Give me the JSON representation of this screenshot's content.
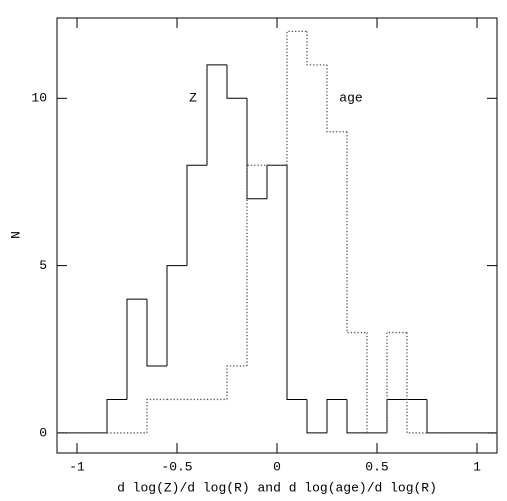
{
  "chart_data": {
    "type": "histogram",
    "x_label": "d log(Z)/d log(R) and d log(age)/d log(R)",
    "y_label": "N",
    "bins": [
      -0.85,
      -0.75,
      -0.65,
      -0.55,
      -0.45,
      -0.35,
      -0.25,
      -0.15,
      -0.05,
      0.05,
      0.15,
      0.25,
      0.35,
      0.45,
      0.55,
      0.65,
      0.75
    ],
    "series": [
      {
        "name": "Z",
        "color": "#000000",
        "line_style": "solid",
        "values": [
          1,
          4,
          2,
          5,
          8,
          11,
          10,
          7,
          8,
          1,
          0,
          1,
          0,
          0,
          1,
          1
        ]
      },
      {
        "name": "age",
        "color": "#555555",
        "line_style": "dotted",
        "values": [
          0,
          0,
          1,
          1,
          1,
          1,
          2,
          8,
          8,
          12,
          11,
          9,
          3,
          0,
          3,
          0
        ]
      }
    ],
    "xlim": [
      -1.1,
      1.1
    ],
    "ylim": [
      -0.6,
      12.4
    ],
    "xticks": [
      -1,
      -0.5,
      0,
      0.5,
      1
    ],
    "yticks": [
      0,
      5,
      10
    ],
    "grid": false
  }
}
